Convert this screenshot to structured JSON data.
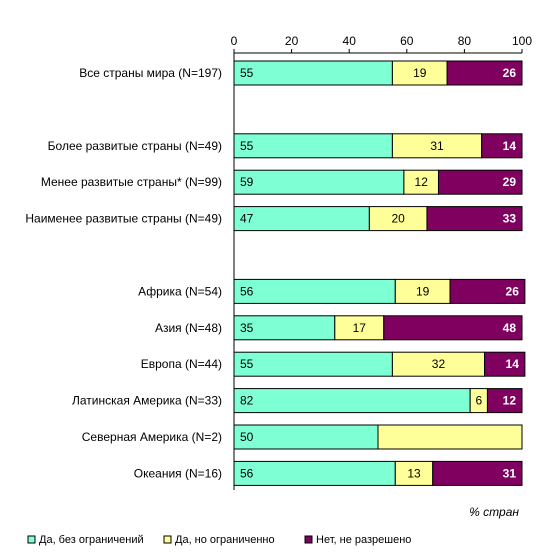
{
  "chart_data": {
    "type": "bar",
    "orientation": "horizontal",
    "stacked": true,
    "percent": true,
    "xlim": [
      0,
      100
    ],
    "xticks": [
      0,
      20,
      40,
      60,
      80,
      100
    ],
    "x_axis_position": "top",
    "xlabel": "% стран",
    "legend_position": "bottom",
    "grid": false,
    "categories": [
      "Все страны мира (N=197)",
      "",
      "Более развитые страны (N=49)",
      "Менее развитые страны* (N=99)",
      "Наименее развитые страны (N=49)",
      "",
      "Африка (N=54)",
      "Азия (N=48)",
      "Европа (N=44)",
      "Латинская Америка (N=33)",
      "Северная Америка (N=2)",
      "Океания (N=16)"
    ],
    "series": [
      {
        "name": "Да, без ограничений",
        "color": "#7fffd4",
        "values": [
          55,
          null,
          55,
          59,
          47,
          null,
          56,
          35,
          55,
          82,
          50,
          56
        ]
      },
      {
        "name": "Да, но ограниченно",
        "color": "#ffff99",
        "values": [
          19,
          null,
          31,
          12,
          20,
          null,
          19,
          17,
          32,
          6,
          50,
          13
        ]
      },
      {
        "name": "Нет, не разрешено",
        "color": "#800060",
        "values": [
          26,
          null,
          14,
          29,
          33,
          null,
          26,
          48,
          14,
          12,
          0,
          31
        ]
      }
    ],
    "data_labels": [
      [
        "55",
        "19",
        "26"
      ],
      null,
      [
        "55",
        "31",
        "14"
      ],
      [
        "59",
        "12",
        "29"
      ],
      [
        "47",
        "20",
        "33"
      ],
      null,
      [
        "56",
        "19",
        "26"
      ],
      [
        "35",
        "17",
        "48"
      ],
      [
        "55",
        "32",
        "14"
      ],
      [
        "82",
        "6",
        "12"
      ],
      [
        "50",
        "",
        ""
      ],
      [
        "56",
        "13",
        "31"
      ]
    ]
  }
}
